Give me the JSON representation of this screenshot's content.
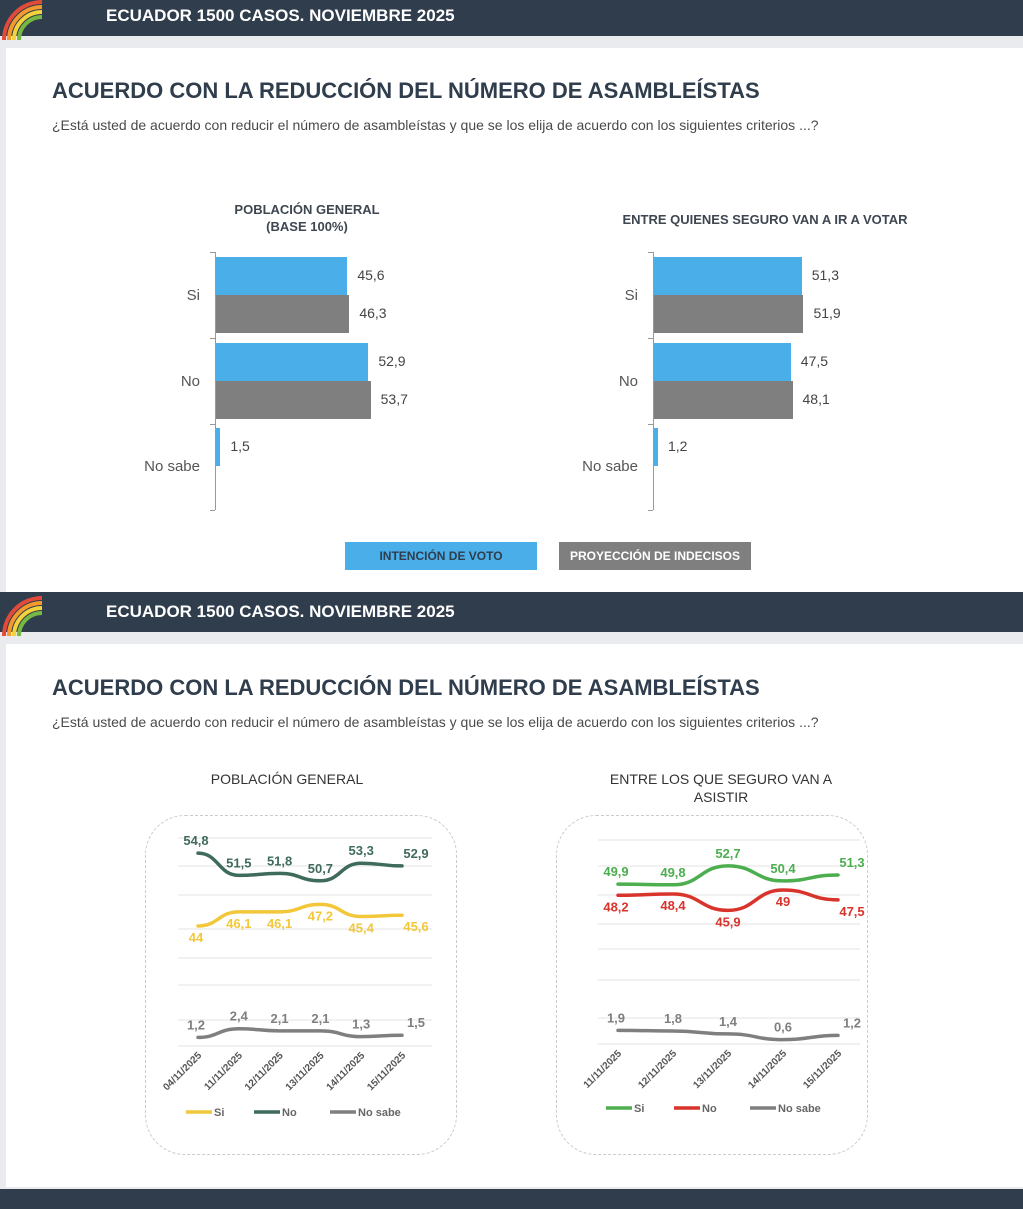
{
  "header": {
    "title": "ECUADOR 1500 CASOS. NOVIEMBRE 2025"
  },
  "section1": {
    "title": "ACUERDO CON LA REDUCCIÓN DEL NÚMERO DE ASAMBLEÍSTAS",
    "subtitle": "¿Está usted de acuerdo con reducir el número de asambleístas y que se los elija de acuerdo con los siguientes criterios ...?",
    "legend": {
      "intencion": "INTENCIÓN DE VOTO",
      "proyeccion": "PROYECCIÓN DE INDECISOS"
    }
  },
  "section2": {
    "title": "ACUERDO CON LA REDUCCIÓN DEL NÚMERO DE ASAMBLEÍSTAS",
    "subtitle": "¿Está usted de acuerdo con reducir el número de asambleístas y que se los elija de acuerdo con los siguientes criterios ...?"
  },
  "colors": {
    "header": "#2f3d4c",
    "intencion": "#4aaee8",
    "proyeccion": "#7f7f7f",
    "si_general": "#f2c83a",
    "no_general": "#3f6b5a",
    "nosabe": "#7f7f7f",
    "si_asistir": "#4cae4f",
    "no_asistir": "#d9342b"
  },
  "chart_data": [
    {
      "type": "bar",
      "orientation": "horizontal",
      "title_lines": [
        "POBLACIÓN GENERAL",
        "(BASE 100%)"
      ],
      "categories": [
        "Si",
        "No",
        "No sabe"
      ],
      "series": [
        {
          "name": "INTENCIÓN DE VOTO",
          "values": [
            45.6,
            52.9,
            1.5
          ],
          "labels": [
            "45,6",
            "52,9",
            "1,5"
          ]
        },
        {
          "name": "PROYECCIÓN DE INDECISOS",
          "values": [
            46.3,
            53.7,
            null
          ],
          "labels": [
            "46,3",
            "53,7",
            ""
          ]
        }
      ],
      "xlim": [
        0,
        100
      ]
    },
    {
      "type": "bar",
      "orientation": "horizontal",
      "title": "ENTRE QUIENES SEGURO VAN A IR A VOTAR",
      "categories": [
        "Si",
        "No",
        "No sabe"
      ],
      "series": [
        {
          "name": "INTENCIÓN DE VOTO",
          "values": [
            51.3,
            47.5,
            1.2
          ],
          "labels": [
            "51,3",
            "47,5",
            "1,2"
          ]
        },
        {
          "name": "PROYECCIÓN DE INDECISOS",
          "values": [
            51.9,
            48.1,
            null
          ],
          "labels": [
            "51,9",
            "48,1",
            ""
          ]
        }
      ],
      "xlim": [
        0,
        100
      ]
    },
    {
      "type": "line",
      "title": "POBLACIÓN GENERAL",
      "x": [
        "04/11/2025",
        "11/11/2025",
        "12/11/2025",
        "13/11/2025",
        "14/11/2025",
        "15/11/2025"
      ],
      "series": [
        {
          "name": "Si",
          "color": "#f2c83a",
          "values": [
            44,
            46.1,
            46.1,
            47.2,
            45.4,
            45.6
          ],
          "labels": [
            "44",
            "46,1",
            "46,1",
            "47,2",
            "45,4",
            "45,6"
          ]
        },
        {
          "name": "No",
          "color": "#3f6b5a",
          "values": [
            54.8,
            51.5,
            51.8,
            50.7,
            53.3,
            52.9
          ],
          "labels": [
            "54,8",
            "51,5",
            "51,8",
            "50,7",
            "53,3",
            "52,9"
          ]
        },
        {
          "name": "No sabe",
          "color": "#7f7f7f",
          "values": [
            1.2,
            2.4,
            2.1,
            2.1,
            1.3,
            1.5
          ],
          "labels": [
            "1,2",
            "2,4",
            "2,1",
            "2,1",
            "1,3",
            "1,5"
          ]
        }
      ],
      "legend": "bottom",
      "grid": true
    },
    {
      "type": "line",
      "title_lines": [
        "ENTRE LOS QUE SEGURO VAN A",
        "ASISTIR"
      ],
      "x": [
        "11/11/2025",
        "12/11/2025",
        "13/11/2025",
        "14/11/2025",
        "15/11/2025"
      ],
      "series": [
        {
          "name": "Si",
          "color": "#4cae4f",
          "values": [
            49.9,
            49.8,
            52.7,
            50.4,
            51.3
          ],
          "labels": [
            "49,9",
            "49,8",
            "52,7",
            "50,4",
            "51,3"
          ]
        },
        {
          "name": "No",
          "color": "#d9342b",
          "values": [
            48.2,
            48.4,
            45.9,
            49,
            47.5
          ],
          "labels": [
            "48,2",
            "48,4",
            "45,9",
            "49",
            "47,5"
          ]
        },
        {
          "name": "No sabe",
          "color": "#7f7f7f",
          "values": [
            1.9,
            1.8,
            1.4,
            0.6,
            1.2
          ],
          "labels": [
            "1,9",
            "1,8",
            "1,4",
            "0,6",
            "1,2"
          ]
        }
      ],
      "legend": "bottom",
      "grid": true
    }
  ]
}
